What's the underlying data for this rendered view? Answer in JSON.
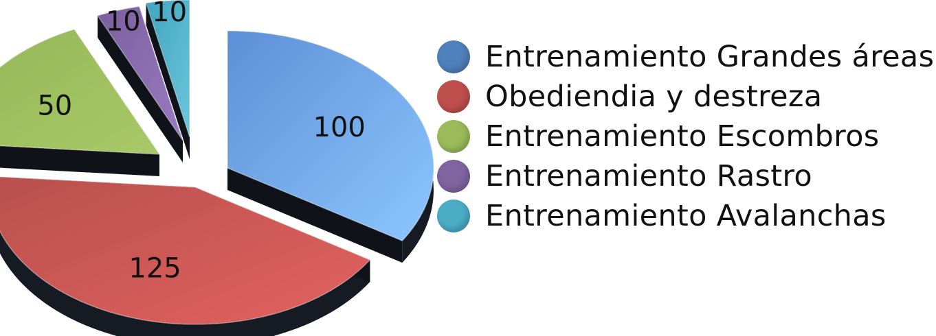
{
  "chart_data": {
    "type": "pie",
    "title": "",
    "categories": [
      "Entrenamiento Grandes áreas",
      "Obediendia y destreza",
      "Entrenamiento Escombros",
      "Entrenamiento Rastro",
      "Entrenamiento Avalanchas"
    ],
    "values": [
      100,
      125,
      50,
      10,
      10
    ],
    "labels": [
      "100",
      "125",
      "50",
      "10",
      "10"
    ],
    "colors": [
      "#4f81bd",
      "#c0504d",
      "#9bbb59",
      "#8064a2",
      "#4bacc6"
    ],
    "style": "3d-exploded",
    "legend_position": "right"
  }
}
